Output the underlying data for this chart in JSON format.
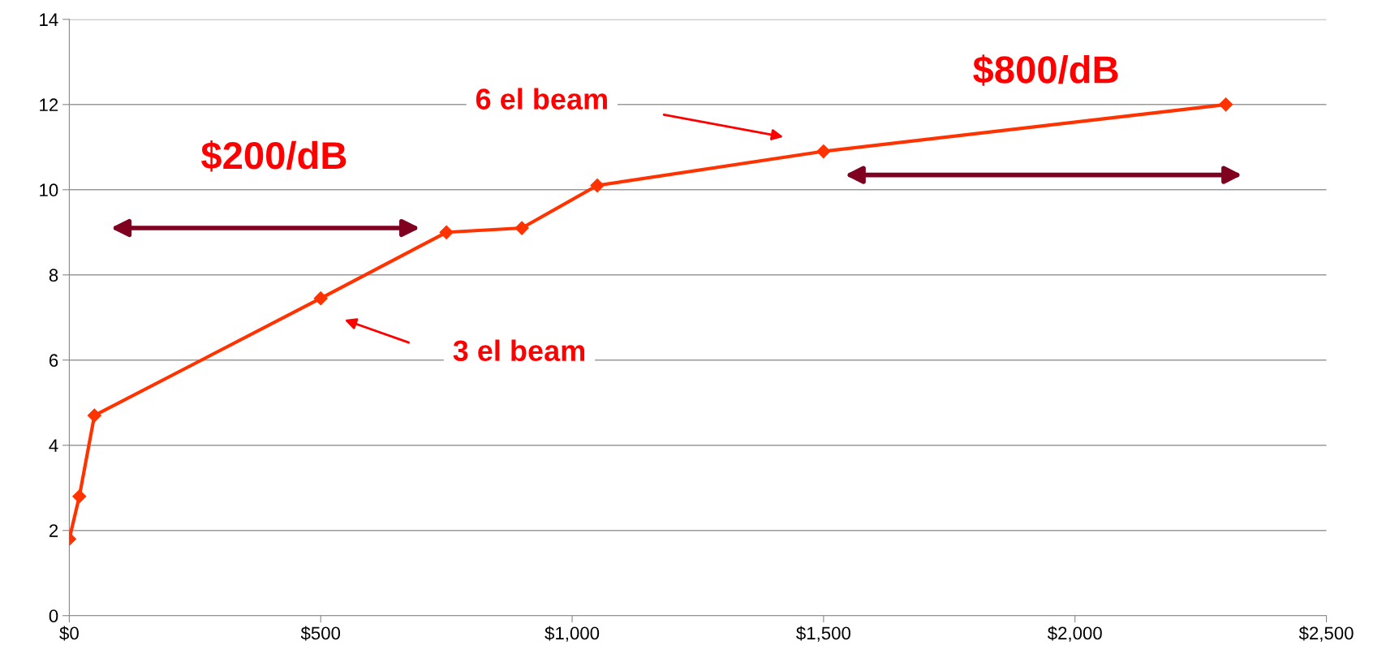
{
  "chart_data": {
    "type": "line",
    "x": [
      0,
      20,
      50,
      500,
      750,
      900,
      1050,
      1500,
      2300
    ],
    "series": [
      {
        "color": "#ff3300",
        "values": [
          1.8,
          2.8,
          4.7,
          7.45,
          9.0,
          9.1,
          10.1,
          10.9,
          12.0
        ]
      }
    ],
    "marker": "diamond",
    "xlim": [
      0,
      2500
    ],
    "xticks": [
      {
        "value": 0,
        "label": "$0"
      },
      {
        "value": 500,
        "label": "$500"
      },
      {
        "value": 1000,
        "label": "$1,000"
      },
      {
        "value": 1500,
        "label": "$1,500"
      },
      {
        "value": 2000,
        "label": "$2,000"
      },
      {
        "value": 2500,
        "label": "$2,500"
      }
    ],
    "ylim": [
      0,
      14
    ],
    "yticks": [
      0,
      2,
      4,
      6,
      8,
      10,
      12,
      14
    ],
    "grid": "y",
    "annotations": [
      "$200/dB",
      "6 el beam",
      "$800/dB",
      "3 el beam"
    ]
  }
}
